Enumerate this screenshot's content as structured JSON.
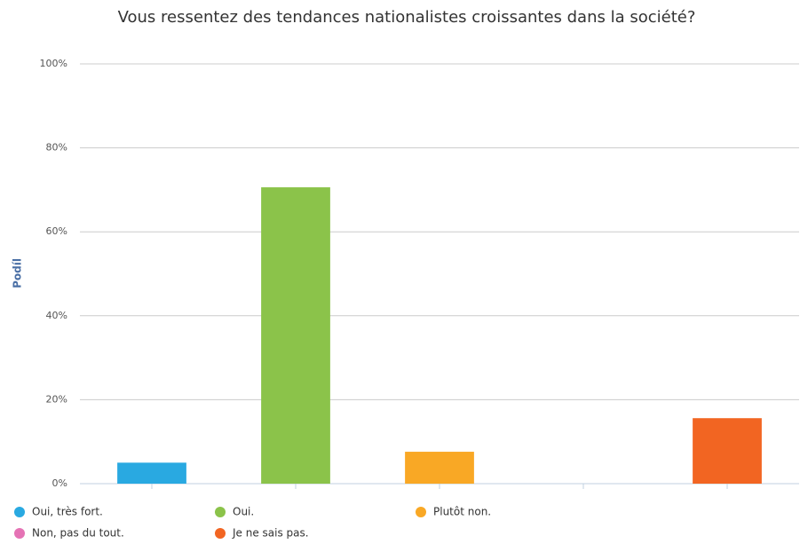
{
  "chart_data": {
    "type": "bar",
    "title": "Vous ressentez des tendances nationalistes croissantes dans la société?",
    "y_label": "Podíl",
    "categories": [
      null,
      null,
      null,
      null,
      null
    ],
    "series": [
      {
        "name": "Oui, très fort.",
        "color": "#29a9e1",
        "values": [
          5,
          null,
          null,
          null,
          null
        ]
      },
      {
        "name": "Oui.",
        "color": "#8bc34a",
        "values": [
          null,
          70.6,
          null,
          null,
          null
        ]
      },
      {
        "name": "Plutôt non.",
        "color": "#f9a825",
        "values": [
          null,
          null,
          7.6,
          null,
          null
        ]
      },
      {
        "name": "Non, pas du tout.",
        "color": "#e573b5",
        "values": [
          null,
          null,
          null,
          0,
          null
        ]
      },
      {
        "name": "Je ne sais pas.",
        "color": "#f26522",
        "values": [
          null,
          null,
          null,
          null,
          15.6
        ]
      }
    ],
    "ylim": [
      0,
      100
    ],
    "yticks": [
      {
        "value": 0,
        "label": "0%"
      },
      {
        "value": 20,
        "label": "20%"
      },
      {
        "value": 40,
        "label": "40%"
      },
      {
        "value": 60,
        "label": "60%"
      },
      {
        "value": 80,
        "label": "80%"
      },
      {
        "value": 100,
        "label": "100%"
      }
    ],
    "grid": true
  }
}
